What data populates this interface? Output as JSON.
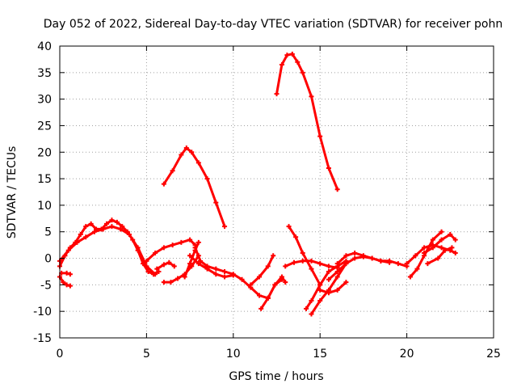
{
  "chart_data": {
    "type": "line",
    "title": "Day 052 of 2022, Sidereal Day-to-day VTEC variation (SDTVAR) for receiver pohn",
    "xlabel": "GPS time / hours",
    "ylabel": "SDTVAR / TECUs",
    "xlim": [
      0,
      25
    ],
    "ylim": [
      -15,
      40
    ],
    "xticks": [
      0,
      5,
      10,
      15,
      20,
      25
    ],
    "yticks": [
      -15,
      -10,
      -5,
      0,
      5,
      10,
      15,
      20,
      25,
      30,
      35,
      40
    ],
    "grid": true,
    "color": "#ff0000",
    "series": [
      {
        "name": "s1",
        "x": [
          0.0,
          0.3,
          0.6,
          0.9,
          1.2,
          1.5,
          1.8,
          2.1,
          2.4,
          2.7,
          3.0,
          3.3,
          3.6,
          3.9,
          4.2,
          4.5,
          4.8,
          5.1,
          5.4,
          5.7
        ],
        "y": [
          -1.5,
          0.5,
          2.0,
          3.0,
          4.5,
          6.0,
          6.5,
          5.5,
          5.5,
          6.5,
          7.2,
          6.8,
          6.0,
          5.0,
          3.5,
          1.5,
          -1.0,
          -2.5,
          -3.0,
          -2.5
        ]
      },
      {
        "name": "s2",
        "x": [
          0.0,
          0.5,
          1.0,
          1.5,
          2.0,
          2.5,
          3.0,
          3.5,
          4.0,
          4.5,
          5.0,
          5.5
        ],
        "y": [
          -0.5,
          1.5,
          3.0,
          4.0,
          5.0,
          5.5,
          6.0,
          5.5,
          4.5,
          2.0,
          -1.5,
          -3.0
        ]
      },
      {
        "name": "s3",
        "x": [
          0.0,
          0.2,
          0.4,
          0.6
        ],
        "y": [
          -3.5,
          -4.5,
          -5.0,
          -5.2
        ]
      },
      {
        "name": "s4",
        "x": [
          0.1,
          0.4,
          0.6
        ],
        "y": [
          -2.8,
          -2.8,
          -3.0
        ]
      },
      {
        "name": "s5",
        "x": [
          5.0,
          5.5,
          6.0,
          6.5,
          7.0,
          7.5,
          7.8
        ],
        "y": [
          -0.5,
          1.0,
          2.0,
          2.5,
          3.0,
          3.5,
          2.5
        ]
      },
      {
        "name": "s6",
        "x": [
          7.8,
          8.1,
          8.5,
          9.0,
          9.5,
          10.0,
          10.5,
          11.0,
          11.5,
          12.0
        ],
        "y": [
          2.0,
          -0.5,
          -1.5,
          -2.0,
          -2.5,
          -3.0,
          -4.0,
          -5.5,
          -7.0,
          -7.5
        ]
      },
      {
        "name": "s7",
        "x": [
          7.5,
          8.0,
          8.5,
          9.0,
          9.5,
          10.0
        ],
        "y": [
          0.5,
          -1.0,
          -2.0,
          -3.0,
          -3.5,
          -3.2
        ]
      },
      {
        "name": "s8",
        "x": [
          6.0,
          6.4,
          6.8,
          7.2,
          7.6,
          8.0
        ],
        "y": [
          -4.5,
          -4.5,
          -3.8,
          -3.0,
          -1.5,
          0.5
        ]
      },
      {
        "name": "s9",
        "x": [
          5.6,
          6.0,
          6.3,
          6.6
        ],
        "y": [
          -2.0,
          -1.2,
          -0.8,
          -1.5
        ]
      },
      {
        "name": "s10",
        "x": [
          7.2,
          7.5,
          7.8,
          8.0
        ],
        "y": [
          -3.5,
          -1.0,
          1.5,
          3.0
        ]
      },
      {
        "name": "s11",
        "x": [
          6.0,
          6.5,
          7.0,
          7.3,
          7.6,
          8.0,
          8.5,
          9.0,
          9.5
        ],
        "y": [
          14.0,
          16.5,
          19.5,
          20.8,
          20.0,
          18.0,
          15.0,
          10.5,
          6.0
        ]
      },
      {
        "name": "s12",
        "x": [
          11.0,
          11.5,
          12.0,
          12.3
        ],
        "y": [
          -5.0,
          -3.5,
          -1.5,
          0.5
        ]
      },
      {
        "name": "s13",
        "x": [
          11.6,
          12.0,
          12.4,
          12.8
        ],
        "y": [
          -9.5,
          -7.5,
          -5.0,
          -4.0
        ]
      },
      {
        "name": "s14",
        "x": [
          12.0,
          12.4,
          12.8,
          13.0
        ],
        "y": [
          -7.5,
          -5.0,
          -3.5,
          -4.5
        ]
      },
      {
        "name": "s15",
        "x": [
          12.5,
          12.8,
          13.1,
          13.4,
          13.7,
          14.0,
          14.5,
          15.0,
          15.5,
          16.0
        ],
        "y": [
          31.0,
          36.5,
          38.3,
          38.5,
          37.0,
          35.0,
          30.5,
          23.0,
          17.0,
          13.0
        ]
      },
      {
        "name": "s16",
        "x": [
          13.0,
          13.5,
          14.0,
          14.5,
          15.0,
          15.5,
          16.0
        ],
        "y": [
          -1.5,
          -0.8,
          -0.5,
          -0.5,
          -1.0,
          -1.5,
          -1.8
        ]
      },
      {
        "name": "s17",
        "x": [
          13.2,
          13.6,
          14.0,
          14.5,
          15.0
        ],
        "y": [
          6.0,
          4.0,
          1.0,
          -2.0,
          -5.0
        ]
      },
      {
        "name": "s18",
        "x": [
          14.2,
          14.5,
          15.0,
          15.5,
          16.0,
          16.5
        ],
        "y": [
          -9.5,
          -8.0,
          -5.0,
          -2.5,
          -1.5,
          -0.5
        ]
      },
      {
        "name": "s19",
        "x": [
          14.5,
          15.0,
          15.5,
          16.0,
          16.5
        ],
        "y": [
          -10.5,
          -8.0,
          -6.0,
          -3.5,
          -1.0
        ]
      },
      {
        "name": "s20",
        "x": [
          15.0,
          15.5,
          16.0,
          16.5
        ],
        "y": [
          -6.0,
          -6.5,
          -6.0,
          -4.5
        ]
      },
      {
        "name": "s21",
        "x": [
          16.0,
          16.5,
          17.0,
          17.5,
          18.0,
          18.5,
          19.0,
          19.5,
          20.0
        ],
        "y": [
          -1.0,
          0.5,
          1.0,
          0.5,
          0.0,
          -0.5,
          -0.5,
          -1.0,
          -1.5
        ]
      },
      {
        "name": "s22",
        "x": [
          15.5,
          16.0,
          16.5,
          17.0,
          17.5,
          18.0,
          18.5,
          19.0
        ],
        "y": [
          -4.0,
          -2.5,
          -1.0,
          0.0,
          0.3,
          0.0,
          -0.5,
          -0.8
        ]
      },
      {
        "name": "s23",
        "x": [
          20.0,
          20.5,
          21.0,
          21.5,
          22.0,
          22.5,
          22.8
        ],
        "y": [
          -1.0,
          0.5,
          2.0,
          2.5,
          2.0,
          1.5,
          1.0
        ]
      },
      {
        "name": "s24",
        "x": [
          20.2,
          20.6,
          21.0,
          21.5,
          22.0
        ],
        "y": [
          -3.5,
          -2.0,
          0.5,
          3.5,
          5.0
        ]
      },
      {
        "name": "s25",
        "x": [
          21.0,
          21.5,
          22.0,
          22.5,
          22.8
        ],
        "y": [
          1.0,
          2.0,
          3.5,
          4.5,
          3.5
        ]
      },
      {
        "name": "s26",
        "x": [
          21.2,
          21.8,
          22.2,
          22.6
        ],
        "y": [
          -1.0,
          0.0,
          1.5,
          2.0
        ]
      }
    ]
  }
}
